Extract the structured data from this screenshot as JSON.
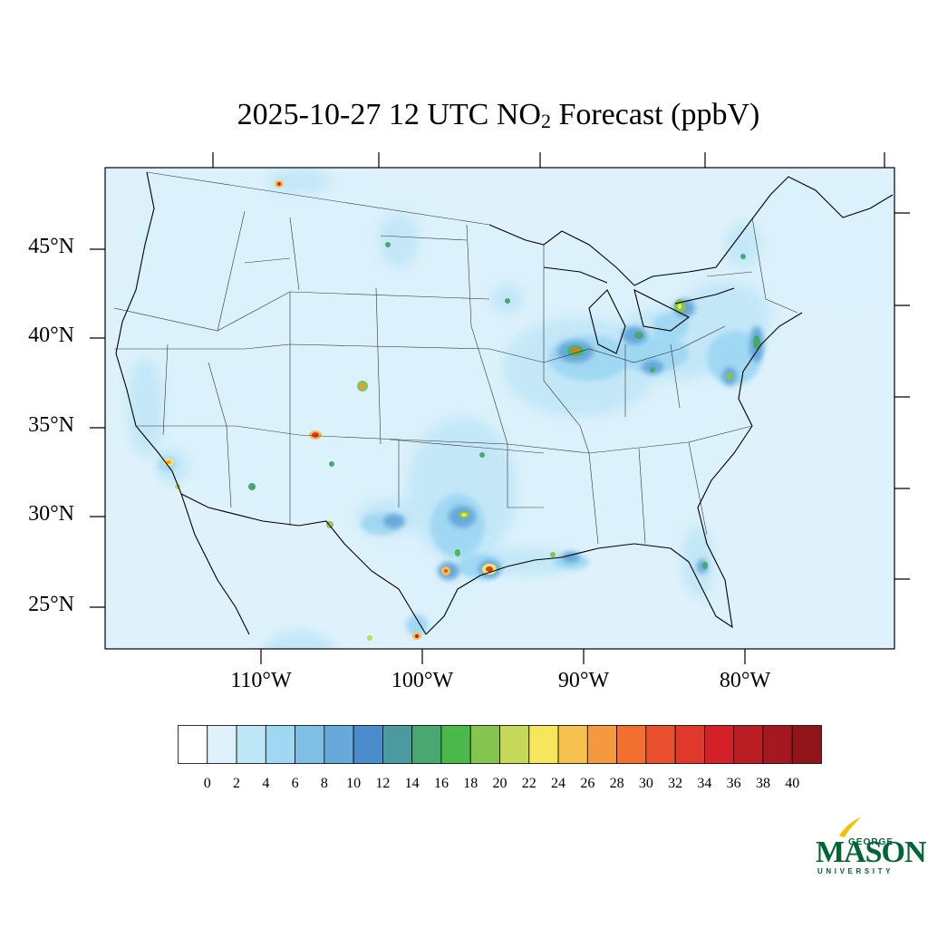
{
  "title": {
    "prefix": "2025-10-27 12 UTC NO",
    "subscript": "2",
    "suffix": " Forecast (ppbV)"
  },
  "map": {
    "latitude_labels": [
      "45°N",
      "40°N",
      "35°N",
      "30°N",
      "25°N"
    ],
    "longitude_labels": [
      "110°W",
      "100°W",
      "90°W",
      "80°W"
    ]
  },
  "colorbar": {
    "tick_labels": [
      "0",
      "2",
      "4",
      "6",
      "8",
      "10",
      "12",
      "14",
      "16",
      "18",
      "20",
      "22",
      "24",
      "26",
      "28",
      "30",
      "32",
      "34",
      "36",
      "38",
      "40"
    ],
    "colors": [
      "#ffffff",
      "#dff2fb",
      "#bfe6f7",
      "#a0d8f3",
      "#7fbfe6",
      "#67a9db",
      "#4a8ccc",
      "#4a9aa0",
      "#48a870",
      "#4ab84a",
      "#85c44e",
      "#c5d85a",
      "#f6e65e",
      "#f6c04e",
      "#f5993e",
      "#f36f31",
      "#e9512e",
      "#e0382a",
      "#d42129",
      "#bb1d24",
      "#a5181f",
      "#8f1519"
    ]
  },
  "logo": {
    "george": "GEORGE",
    "mason": "MASON",
    "university": "UNIVERSITY"
  }
}
